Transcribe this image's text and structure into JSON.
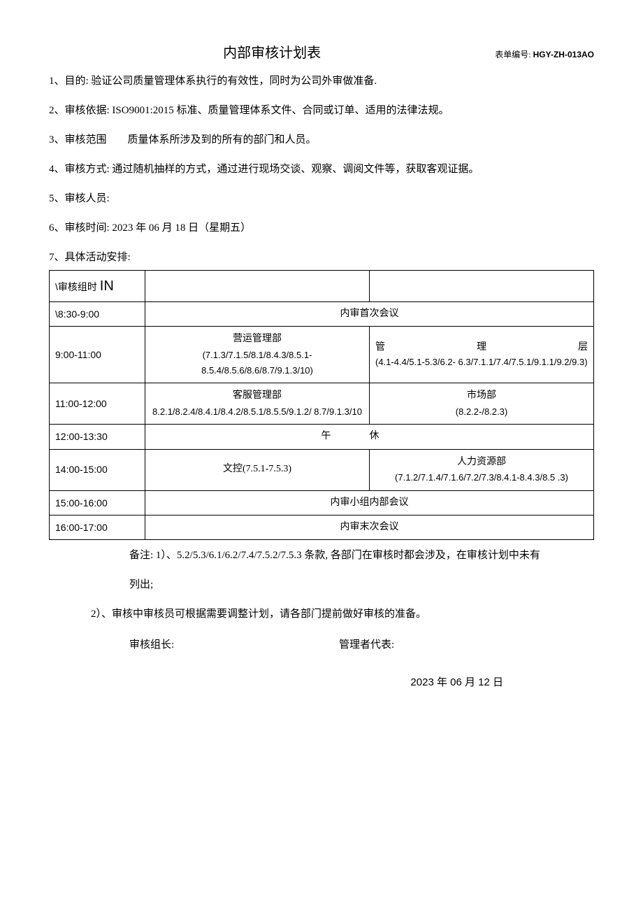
{
  "header": {
    "title": "内部审核计划表",
    "form_code_label": "表单编号:",
    "form_code_value": "HGY-ZH-013AO"
  },
  "items": {
    "i1": "1、目的: 验证公司质量管理体系执行的有效性，同时为公司外审做准备.",
    "i2": "2、审核依据: ISO9001:2015 标准、质量管理体系文件、合同或订单、适用的法律法规。",
    "i3": "3、审核范围　　质量体系所涉及到的所有的部门和人员。",
    "i4": "4、审核方式: 通过随机抽样的方式，通过进行现场交谈、观察、调阅文件等，获取客观证据。",
    "i5": "5、审核人员:",
    "i6": "6、审核时间: 2023 年 06 月 18 日（星期五）",
    "i7": "7、具体活动安排:"
  },
  "table": {
    "header_left_prefix": "\\审核组时 ",
    "header_left_in": "IN",
    "rows": {
      "r1": {
        "time": "\\8:30-9:00",
        "text": "内审首次会议"
      },
      "r2": {
        "time": "9:00-11:00",
        "colA_title": "营运管理部",
        "colA_codes": "(7.1.3/7.1.5/8.1/8.4.3/8.5.1-\n8.5.4/8.5.6/8.6/8.7/9.1.3/10)",
        "colB_mgmt_a": "管",
        "colB_mgmt_b": "理",
        "colB_mgmt_c": "层",
        "colB_codes": "(4.1-4.4/5.1-5.3/6.2-\n6.3/7.1.1/7.4/7.5.1/9.1.1/9.2/9.3)"
      },
      "r3": {
        "time": "11:00-12:00",
        "colA_title": "客服管理部",
        "colA_codes": "8.2.1/8.2.4/8.4.1/8.4.2/8.5.1/8.5.5/9.1.2/\n8.7/9.1.3/10",
        "colB_title": "市场部",
        "colB_codes": "(8.2.2-/8.2.3)"
      },
      "r4": {
        "time": "12:00-13:30",
        "text": "午休"
      },
      "r5": {
        "time": "14:00-15:00",
        "colA_text": "文控(7.5.1-7.5.3)",
        "colB_title": "人力资源部",
        "colB_codes": "(7.1.2/7.1.4/7.1.6/7.2/7.3/8.4.1-8.4.3/8.5\n.3)"
      },
      "r6": {
        "time": "15:00-16:00",
        "text": "内审小组内部会议"
      },
      "r7": {
        "time": "16:00-17:00",
        "text": "内审末次会议"
      }
    }
  },
  "notes": {
    "n1a": "备注: 1）、5.2/5.3/6.1/6.2/7.4/7.5.2/7.5.3 条款, 各部门在审核时都会涉及，在审核计划中未有",
    "n1b": "列出;",
    "n2": "2）、审核中审核员可根据需要调整计划，请各部门提前做好审核的准备。"
  },
  "sign": {
    "leader": "审核组长:",
    "rep": "管理者代表:",
    "date": "2023 年 06 月 12 日"
  }
}
